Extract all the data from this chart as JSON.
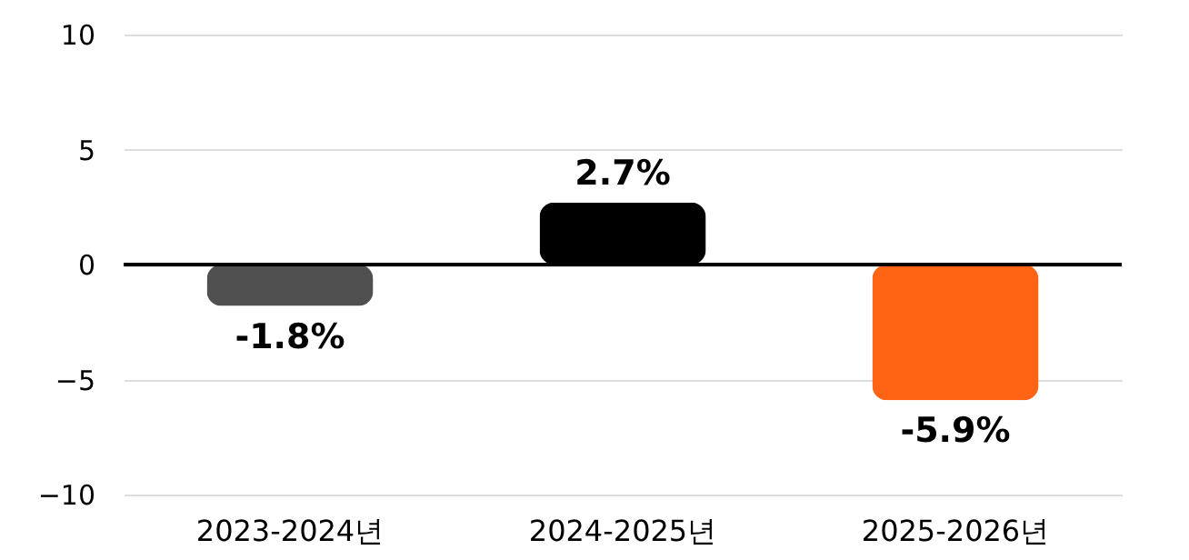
{
  "chart_data": {
    "type": "bar",
    "categories": [
      "2023-2024년",
      "2024-2025년",
      "2025-2026년"
    ],
    "values": [
      -1.8,
      2.7,
      -5.9
    ],
    "colors": [
      "#505050",
      "#000000",
      "#ff6415"
    ],
    "value_labels": [
      "-1.8%",
      "2.7%",
      "-5.9%"
    ],
    "ylim": [
      -10,
      10
    ],
    "yticks": [
      -10,
      -5,
      0,
      5,
      10
    ],
    "grid": "y",
    "ref_lines": [
      {
        "axis": "y",
        "value": 0,
        "color": "#000000"
      }
    ]
  }
}
